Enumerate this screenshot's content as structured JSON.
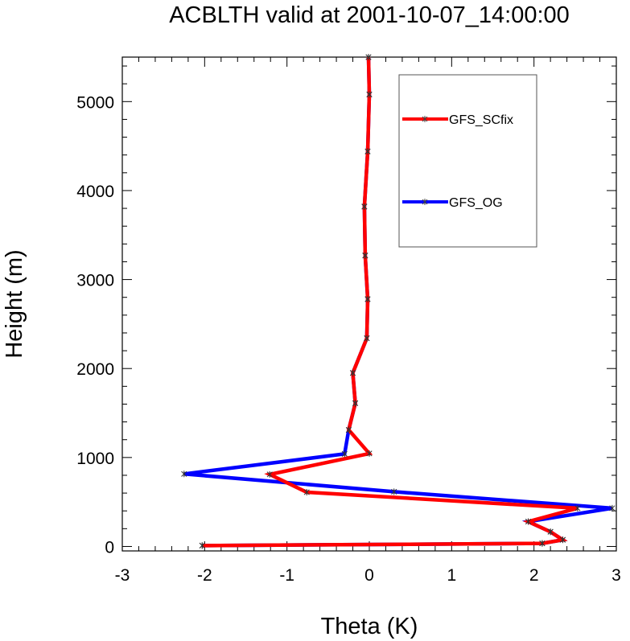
{
  "chart_data": {
    "type": "line",
    "title": "ACBLTH valid at 2001-10-07_14:00:00",
    "xlabel": "Theta (K)",
    "ylabel": "Height (m)",
    "xlim": [
      -3,
      3
    ],
    "ylim": [
      -50,
      5500
    ],
    "xticks": [
      -3,
      -2,
      -1,
      0,
      1,
      2,
      3
    ],
    "xtick_labels": [
      "-3",
      "-2",
      "-1",
      "0",
      "1",
      "2",
      "3"
    ],
    "yticks": [
      0,
      1000,
      2000,
      3000,
      4000,
      5000
    ],
    "ytick_labels": [
      "0",
      "1000",
      "2000",
      "3000",
      "4000",
      "5000"
    ],
    "grid": false,
    "legend_position": "top-right",
    "series": [
      {
        "name": "GFS_SCfix",
        "color": "#ff0000",
        "marker": "asterisk",
        "points": [
          [
            -2.03,
            10
          ],
          [
            2.1,
            35
          ],
          [
            2.35,
            75
          ],
          [
            2.2,
            165
          ],
          [
            1.93,
            280
          ],
          [
            2.53,
            430
          ],
          [
            -0.76,
            610
          ],
          [
            -1.21,
            810
          ],
          [
            0.0,
            1045
          ],
          [
            -0.25,
            1310
          ],
          [
            -0.17,
            1610
          ],
          [
            -0.2,
            1950
          ],
          [
            -0.03,
            2340
          ],
          [
            -0.02,
            2780
          ],
          [
            -0.05,
            3270
          ],
          [
            -0.06,
            3820
          ],
          [
            -0.02,
            4440
          ],
          [
            0.0,
            5080
          ],
          [
            -0.01,
            5500
          ]
        ]
      },
      {
        "name": "GFS_OG",
        "color": "#0000ff",
        "marker": "asterisk",
        "points": [
          [
            -2.03,
            10
          ],
          [
            2.1,
            35
          ],
          [
            2.35,
            75
          ],
          [
            2.2,
            165
          ],
          [
            1.93,
            280
          ],
          [
            2.95,
            430
          ],
          [
            0.3,
            615
          ],
          [
            -2.25,
            815
          ],
          [
            -0.3,
            1040
          ],
          [
            -0.25,
            1310
          ],
          [
            -0.17,
            1610
          ],
          [
            -0.2,
            1950
          ],
          [
            -0.03,
            2340
          ],
          [
            -0.02,
            2780
          ],
          [
            -0.05,
            3270
          ],
          [
            -0.06,
            3820
          ],
          [
            -0.02,
            4440
          ],
          [
            0.0,
            5080
          ],
          [
            -0.01,
            5500
          ]
        ]
      }
    ]
  }
}
